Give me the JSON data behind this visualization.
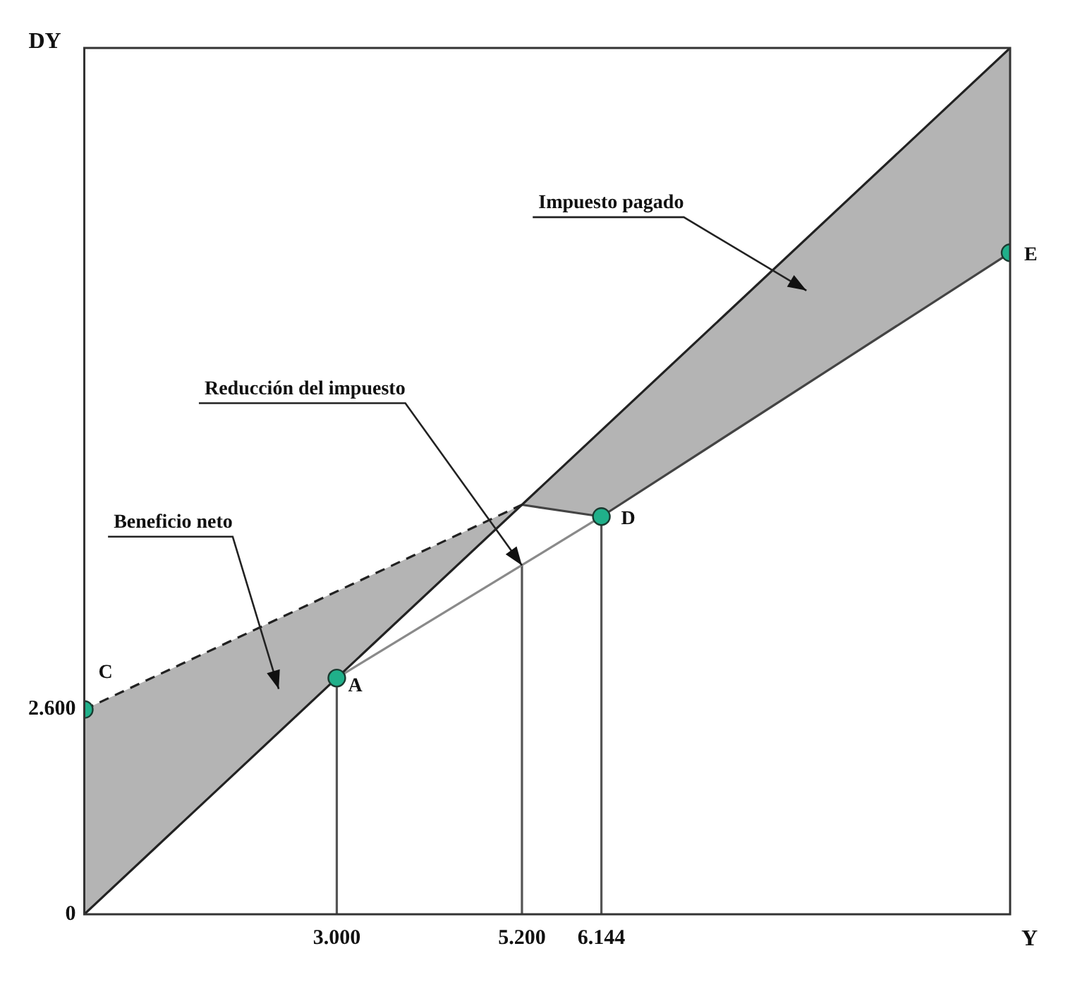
{
  "chart_data": {
    "type": "line",
    "xlabel": "Y",
    "ylabel": "DY",
    "xlim": [
      0,
      11000
    ],
    "ylim": [
      0,
      11000
    ],
    "xticks": [
      {
        "value": 0,
        "label": null
      },
      {
        "value": 3000,
        "label": "3.000"
      },
      {
        "value": 5200,
        "label": "5.200"
      },
      {
        "value": 6144,
        "label": "6.144"
      }
    ],
    "yticks": [
      0,
      {
        "value": 2600,
        "label": "2.600"
      }
    ],
    "grid": false,
    "legend": false,
    "series": [
      {
        "type": "line",
        "color": "#222222",
        "x": [
          0,
          11000
        ],
        "values": [
          0,
          11000
        ]
      },
      {
        "type": "line",
        "color": "#222222",
        "line_style": "dashed",
        "x": [
          0,
          5200
        ],
        "values": [
          2600,
          5200
        ]
      },
      {
        "type": "line",
        "color": "#444444",
        "x": [
          5200,
          6144,
          11000
        ],
        "values": [
          5200,
          5050,
          8400
        ]
      },
      {
        "type": "line",
        "color": "#8a8a8a",
        "x": [
          3000,
          6144
        ],
        "values": [
          3000,
          5050
        ]
      },
      {
        "type": "line",
        "color": "#555555",
        "x": [
          3000,
          3000
        ],
        "values": [
          0,
          3000
        ]
      },
      {
        "type": "line",
        "color": "#555555",
        "x": [
          5200,
          5200
        ],
        "values": [
          0,
          4430
        ]
      },
      {
        "type": "line",
        "color": "#555555",
        "x": [
          6144,
          6144
        ],
        "values": [
          0,
          5050
        ]
      },
      {
        "type": "scatter",
        "color": "#20b08a",
        "marker": "circle",
        "x": [
          0,
          3000,
          6144,
          11000
        ],
        "values": [
          2600,
          3000,
          5050,
          8400
        ]
      }
    ],
    "annotations": [
      "Impuesto pagado",
      {
        "text": "Reducción del impuesto",
        "x": 5200,
        "y": 4430
      },
      "Beneficio neto",
      {
        "text": "C",
        "x": 0,
        "y": 2600
      },
      {
        "text": "A",
        "x": 3000,
        "y": 3000
      },
      {
        "text": "D",
        "x": 6144,
        "y": 5050
      },
      {
        "text": "E",
        "x": 11000,
        "y": 8400
      }
    ]
  }
}
